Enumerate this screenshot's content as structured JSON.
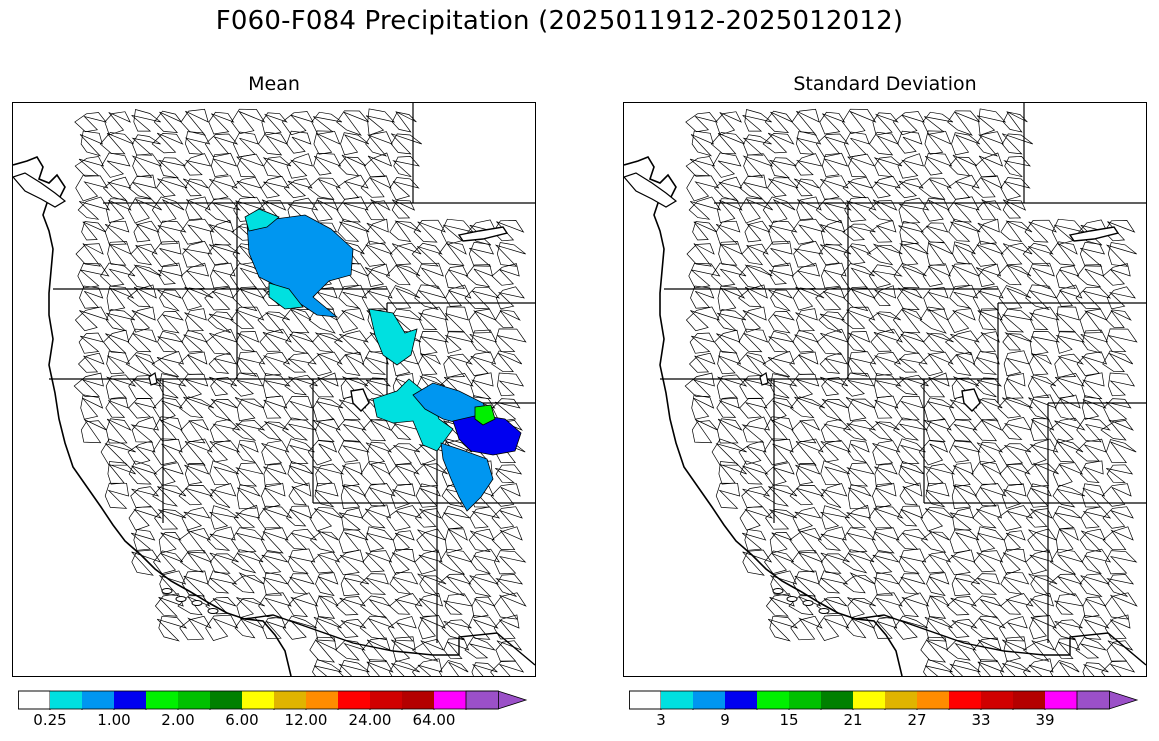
{
  "figure": {
    "title": "F060-F084 Precipitation (2025011912-2025012012)"
  },
  "panels": [
    {
      "id": "mean",
      "title": "Mean",
      "colorbar": {
        "colors": [
          "#ffffff",
          "#00e0e0",
          "#0096f0",
          "#0000f0",
          "#00f000",
          "#00c000",
          "#008000",
          "#ffff00",
          "#e0b400",
          "#ff8c00",
          "#ff0000",
          "#d00000",
          "#b40000",
          "#ff00ff",
          "#9b50c8"
        ],
        "labels": [
          "0.25",
          "1.00",
          "2.00",
          "6.00",
          "12.00",
          "24.00",
          "64.00"
        ]
      },
      "shaded_basins": [
        {
          "region": "northern-idaho-western-montana",
          "category": "1.00",
          "color": "#0096f0"
        },
        {
          "region": "northern-idaho-fringe",
          "category": "0.25",
          "color": "#00e0e0"
        },
        {
          "region": "southwest-montana",
          "category": "0.25",
          "color": "#00e0e0"
        },
        {
          "region": "northern-utah-wasatch",
          "category": "0.25",
          "color": "#00e0e0"
        },
        {
          "region": "northern-utah-uinta",
          "category": "1.00",
          "color": "#0096f0"
        },
        {
          "region": "northwest-colorado",
          "category": "2.00",
          "color": "#0000f0"
        },
        {
          "region": "northern-colorado-peak",
          "category": "6.00",
          "color": "#00f000"
        },
        {
          "region": "southwest-colorado",
          "category": "1.00",
          "color": "#0096f0"
        }
      ]
    },
    {
      "id": "stddev",
      "title": "Standard Deviation",
      "colorbar": {
        "colors": [
          "#ffffff",
          "#00e0e0",
          "#0096f0",
          "#0000f0",
          "#00f000",
          "#00c000",
          "#008000",
          "#ffff00",
          "#e0b400",
          "#ff8c00",
          "#ff0000",
          "#d00000",
          "#b40000",
          "#ff00ff",
          "#9b50c8"
        ],
        "labels": [
          "3",
          "9",
          "15",
          "21",
          "27",
          "33",
          "39"
        ]
      },
      "shaded_basins": []
    }
  ]
}
